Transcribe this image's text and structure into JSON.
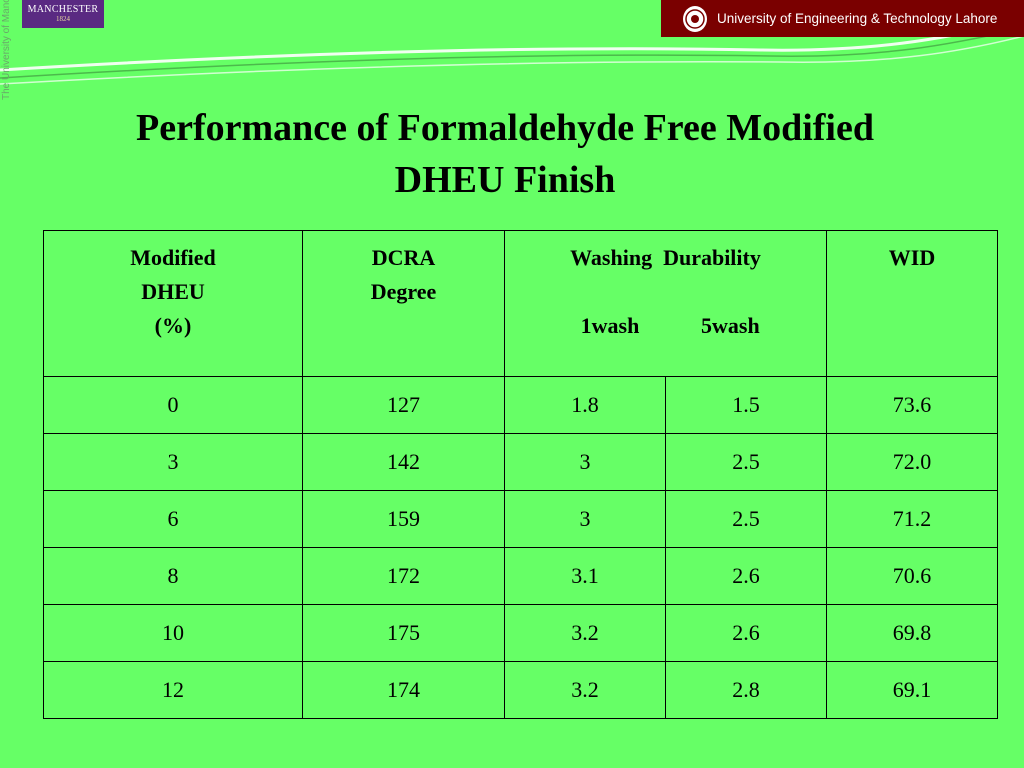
{
  "header": {
    "manchester_logo": {
      "name": "MANCHESTER",
      "year": "1824"
    },
    "vertical_text": "The University of Manchester",
    "uet_banner": "University of Engineering & Technology Lahore"
  },
  "title": {
    "line1": "Performance of Formaldehyde Free Modified",
    "line2": "DHEU Finish"
  },
  "table": {
    "headers": {
      "col1": [
        "Modified",
        "DHEU",
        "(%)"
      ],
      "col2": [
        "DCRA",
        "Degree"
      ],
      "col3": "Washing  Durability",
      "col3_sub": [
        "1wash",
        "5wash"
      ],
      "col4": "WID"
    },
    "rows": [
      [
        "0",
        "127",
        "1.8",
        "1.5",
        "73.6"
      ],
      [
        "3",
        "142",
        "3",
        "2.5",
        "72.0"
      ],
      [
        "6",
        "159",
        "3",
        "2.5",
        "71.2"
      ],
      [
        "8",
        "172",
        "3.1",
        "2.6",
        "70.6"
      ],
      [
        "10",
        "175",
        "3.2",
        "2.6",
        "69.8"
      ],
      [
        "12",
        "174",
        "3.2",
        "2.8",
        "69.1"
      ]
    ]
  }
}
